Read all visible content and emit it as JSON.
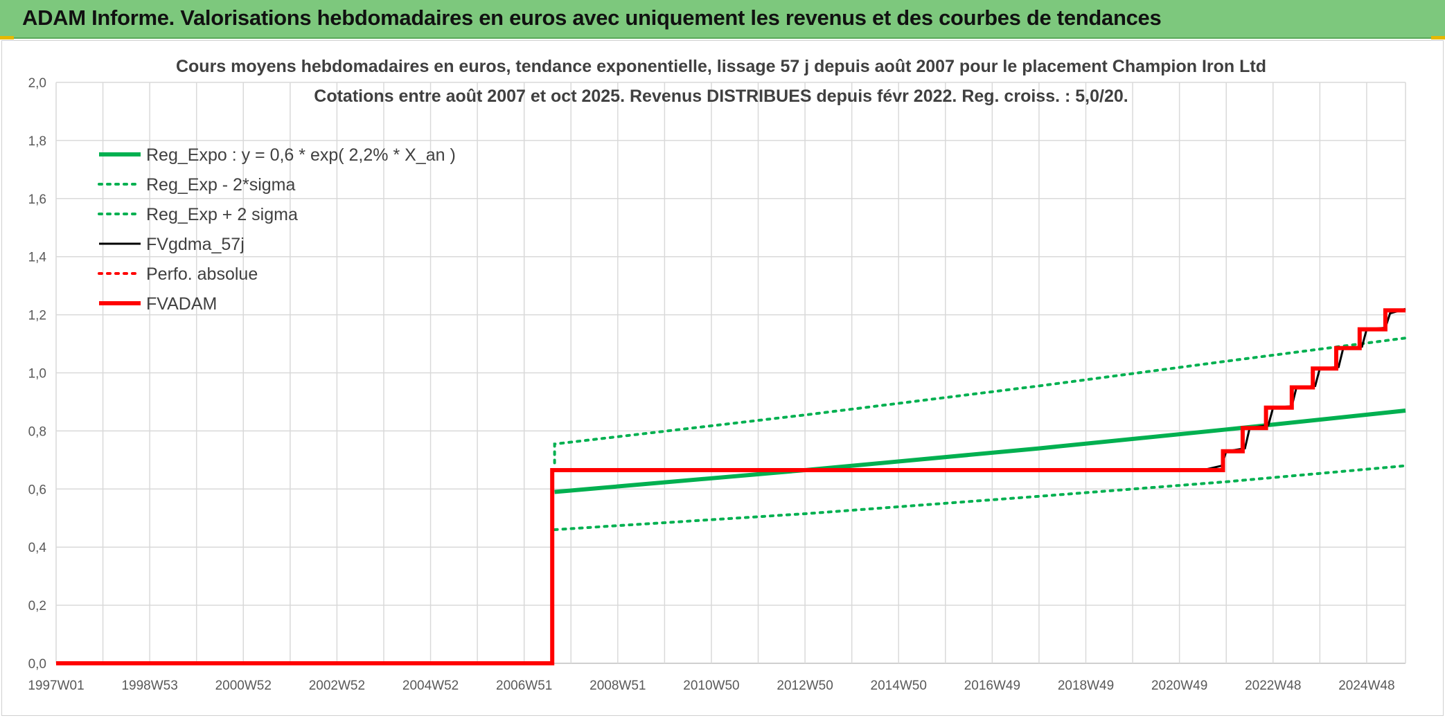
{
  "header": {
    "title": "ADAM Informe. Valorisations hebdomadaires en euros avec uniquement les revenus et des courbes de tendances"
  },
  "colors": {
    "green": "#00b050",
    "red": "#ff0000",
    "black": "#000000",
    "header_bg": "#7dc87d"
  },
  "chart_data": {
    "type": "line",
    "title": "Cours moyens hebdomadaires en euros, tendance exponentielle, lissage 57 j depuis août 2007 pour le placement Champion Iron Ltd",
    "subtitle": "Cotations entre août 2007 et oct 2025. Revenus DISTRIBUES depuis févr 2022. Reg. croiss. : 5,0/20.",
    "xlabel": "",
    "ylabel": "",
    "ylim": [
      0,
      2.0
    ],
    "y_ticks": [
      "0,0",
      "0,2",
      "0,4",
      "0,6",
      "0,8",
      "1,0",
      "1,2",
      "1,4",
      "1,6",
      "1,8",
      "2,0"
    ],
    "x_range": [
      1997.0,
      2025.83
    ],
    "x_ticks": [
      {
        "label": "1997W01",
        "x": 1997.0
      },
      {
        "label": "1998W53",
        "x": 1999.0
      },
      {
        "label": "2000W52",
        "x": 2001.0
      },
      {
        "label": "2002W52",
        "x": 2003.0
      },
      {
        "label": "2004W52",
        "x": 2005.0
      },
      {
        "label": "2006W51",
        "x": 2007.0
      },
      {
        "label": "2008W51",
        "x": 2009.0
      },
      {
        "label": "2010W50",
        "x": 2011.0
      },
      {
        "label": "2012W50",
        "x": 2013.0
      },
      {
        "label": "2014W50",
        "x": 2015.0
      },
      {
        "label": "2016W49",
        "x": 2017.0
      },
      {
        "label": "2018W49",
        "x": 2019.0
      },
      {
        "label": "2020W49",
        "x": 2021.0
      },
      {
        "label": "2022W48",
        "x": 2023.0
      },
      {
        "label": "2024W48",
        "x": 2025.0
      }
    ],
    "grid": true,
    "legend_position": "top-left",
    "series": [
      {
        "name": "Reg_Expo : y = 0,6 * exp( 2,2% *  X_an )",
        "color": "#00b050",
        "style": "solid",
        "width": 6,
        "points": [
          [
            2007.65,
            0.59
          ],
          [
            2013.0,
            0.665
          ],
          [
            2018.0,
            0.74
          ],
          [
            2022.0,
            0.805
          ],
          [
            2025.83,
            0.87
          ]
        ]
      },
      {
        "name": "Reg_Exp - 2*sigma",
        "color": "#00b050",
        "style": "dotted",
        "width": 4,
        "points": [
          [
            2007.65,
            0.46
          ],
          [
            2013.0,
            0.515
          ],
          [
            2018.0,
            0.575
          ],
          [
            2022.0,
            0.625
          ],
          [
            2025.83,
            0.68
          ]
        ]
      },
      {
        "name": "Reg_Exp + 2 sigma",
        "color": "#00b050",
        "style": "dotted",
        "width": 4,
        "points": [
          [
            2007.65,
            0.69
          ],
          [
            2007.65,
            0.755
          ],
          [
            2013.0,
            0.855
          ],
          [
            2018.0,
            0.955
          ],
          [
            2022.0,
            1.04
          ],
          [
            2025.83,
            1.12
          ]
        ]
      },
      {
        "name": "FVgdma_57j",
        "color": "#000000",
        "style": "solid",
        "width": 3,
        "points": [
          [
            2021.5,
            0.665
          ],
          [
            2021.9,
            0.68
          ],
          [
            2022.0,
            0.73
          ],
          [
            2022.4,
            0.74
          ],
          [
            2022.5,
            0.81
          ],
          [
            2022.9,
            0.82
          ],
          [
            2023.0,
            0.88
          ],
          [
            2023.4,
            0.885
          ],
          [
            2023.5,
            0.95
          ],
          [
            2023.9,
            0.955
          ],
          [
            2024.0,
            1.015
          ],
          [
            2024.4,
            1.02
          ],
          [
            2024.5,
            1.085
          ],
          [
            2024.9,
            1.09
          ],
          [
            2025.0,
            1.15
          ],
          [
            2025.4,
            1.155
          ],
          [
            2025.5,
            1.205
          ],
          [
            2025.83,
            1.22
          ]
        ]
      },
      {
        "name": "Perfo. absolue",
        "color": "#ff0000",
        "style": "dotted",
        "width": 4,
        "points": []
      },
      {
        "name": "FVADAM",
        "color": "#ff0000",
        "style": "solid",
        "width": 6,
        "points": [
          [
            1997.0,
            0.0
          ],
          [
            2007.6,
            0.0
          ],
          [
            2007.6,
            0.665
          ],
          [
            2021.93,
            0.665
          ],
          [
            2021.93,
            0.73
          ],
          [
            2022.35,
            0.73
          ],
          [
            2022.35,
            0.81
          ],
          [
            2022.85,
            0.81
          ],
          [
            2022.85,
            0.88
          ],
          [
            2023.4,
            0.88
          ],
          [
            2023.4,
            0.95
          ],
          [
            2023.85,
            0.95
          ],
          [
            2023.85,
            1.015
          ],
          [
            2024.35,
            1.015
          ],
          [
            2024.35,
            1.085
          ],
          [
            2024.85,
            1.085
          ],
          [
            2024.85,
            1.15
          ],
          [
            2025.4,
            1.15
          ],
          [
            2025.4,
            1.215
          ],
          [
            2025.83,
            1.215
          ]
        ]
      }
    ]
  }
}
